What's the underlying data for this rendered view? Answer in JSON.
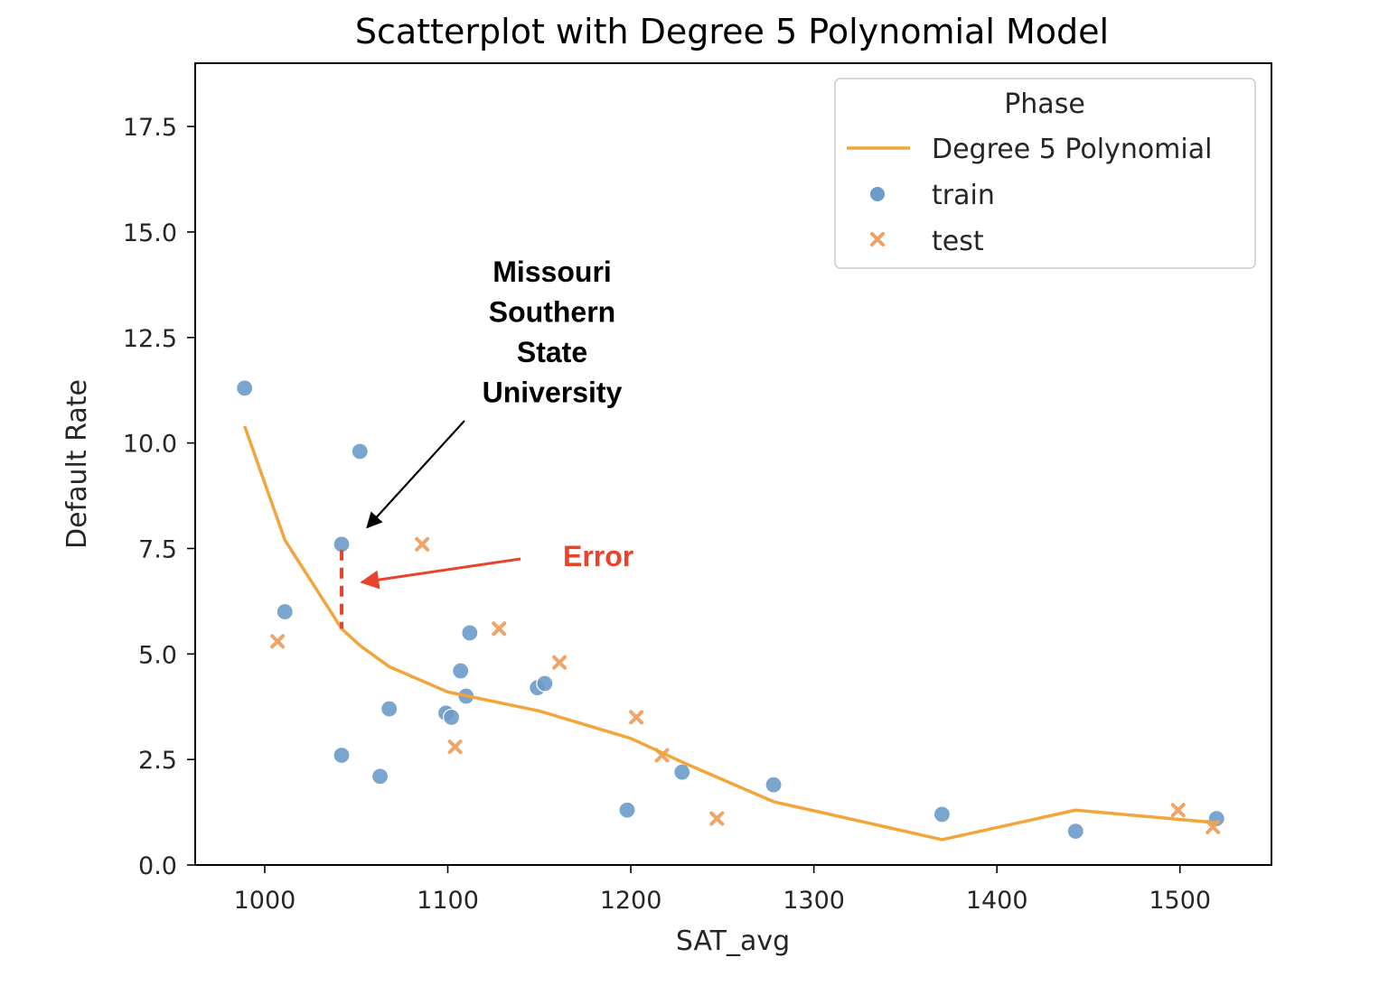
{
  "chart_data": {
    "type": "scatter",
    "title": "Scatterplot with Degree 5 Polynomial Model",
    "xlabel": "SAT_avg",
    "ylabel": "Default Rate",
    "xlim": [
      962,
      1550
    ],
    "ylim": [
      0,
      19
    ],
    "xticks": [
      1000,
      1100,
      1200,
      1300,
      1400,
      1500
    ],
    "xtick_labels": [
      "1000",
      "1100",
      "1200",
      "1300",
      "1400",
      "1500"
    ],
    "yticks": [
      0,
      2.5,
      5,
      7.5,
      10,
      12.5,
      15,
      17.5
    ],
    "ytick_labels": [
      "0.0",
      "2.5",
      "5.0",
      "7.5",
      "10.0",
      "12.5",
      "15.0",
      "17.5"
    ],
    "grid": false,
    "legend": {
      "title": "Phase",
      "placement": "top-right",
      "entries": [
        {
          "label": "Degree 5 Polynomial",
          "kind": "line"
        },
        {
          "label": "train",
          "kind": "dot"
        },
        {
          "label": "test",
          "kind": "cross"
        }
      ]
    },
    "colors": {
      "model": "#f2a53a",
      "train": "#6b9bc9",
      "test": "#f0a060",
      "error": "#e8442c",
      "annotation": "#000000"
    },
    "series": [
      {
        "name": "Degree 5 Polynomial",
        "kind": "line",
        "points": [
          [
            989,
            10.4
          ],
          [
            1011,
            7.7
          ],
          [
            1042,
            5.6
          ],
          [
            1052,
            5.2
          ],
          [
            1068,
            4.7
          ],
          [
            1100,
            4.1
          ],
          [
            1150,
            3.65
          ],
          [
            1200,
            3.0
          ],
          [
            1230,
            2.4
          ],
          [
            1278,
            1.5
          ],
          [
            1370,
            0.6
          ],
          [
            1443,
            1.3
          ],
          [
            1520,
            1.0
          ]
        ]
      },
      {
        "name": "train",
        "kind": "scatter",
        "points": [
          [
            989,
            11.3
          ],
          [
            1011,
            6.0
          ],
          [
            1042,
            7.6
          ],
          [
            1042,
            2.6
          ],
          [
            1052,
            9.8
          ],
          [
            1063,
            2.1
          ],
          [
            1068,
            3.7
          ],
          [
            1099,
            3.6
          ],
          [
            1102,
            3.5
          ],
          [
            1107,
            4.6
          ],
          [
            1110,
            4.0
          ],
          [
            1112,
            5.5
          ],
          [
            1149,
            4.2
          ],
          [
            1153,
            4.3
          ],
          [
            1198,
            1.3
          ],
          [
            1228,
            2.2
          ],
          [
            1278,
            1.9
          ],
          [
            1370,
            1.2
          ],
          [
            1443,
            0.8
          ],
          [
            1520,
            1.1
          ]
        ]
      },
      {
        "name": "test",
        "kind": "scatter",
        "points": [
          [
            1007,
            5.3
          ],
          [
            1086,
            7.6
          ],
          [
            1104,
            2.8
          ],
          [
            1128,
            5.6
          ],
          [
            1161,
            4.8
          ],
          [
            1203,
            3.5
          ],
          [
            1217,
            2.6
          ],
          [
            1247,
            1.1
          ],
          [
            1499,
            1.3
          ],
          [
            1518,
            0.9
          ]
        ]
      }
    ],
    "annotations": [
      {
        "text": [
          "Missouri",
          "Southern",
          "State",
          "University"
        ],
        "arrow_to": [
          1056,
          8.0
        ],
        "color": "#000000"
      },
      {
        "text": "Error",
        "arrow_to": [
          1053,
          6.7
        ],
        "error_segment": {
          "x": 1042,
          "y_from": 7.6,
          "y_to": 5.6
        },
        "color": "#e8442c"
      }
    ]
  }
}
